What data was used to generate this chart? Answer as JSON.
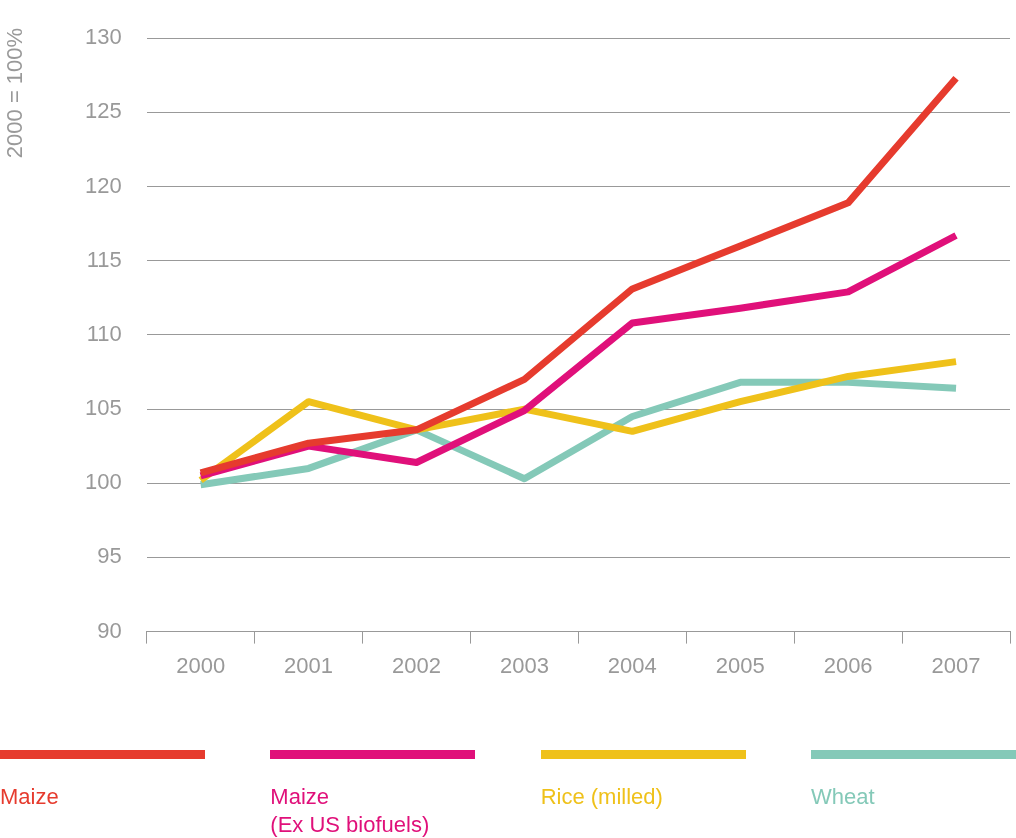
{
  "chart_data": {
    "type": "line",
    "ylabel": "2000 = 100%",
    "categories": [
      "2000",
      "2001",
      "2002",
      "2003",
      "2004",
      "2005",
      "2006",
      "2007"
    ],
    "series": [
      {
        "name": "Maize",
        "color": "#e63b2e",
        "values": [
          100.7,
          102.7,
          103.6,
          107.0,
          113.1,
          116.0,
          118.9,
          127.3
        ]
      },
      {
        "name": "Maize\n(Ex US biofuels)",
        "color": "#e0107a",
        "values": [
          100.5,
          102.5,
          101.4,
          104.9,
          110.8,
          111.8,
          112.9,
          116.7
        ]
      },
      {
        "name": "Rice (milled)",
        "color": "#efc11a",
        "values": [
          100.2,
          105.5,
          103.6,
          105.0,
          103.5,
          105.5,
          107.2,
          108.2
        ]
      },
      {
        "name": "Wheat",
        "color": "#84c9b8",
        "values": [
          99.9,
          101.0,
          103.6,
          100.3,
          104.5,
          106.8,
          106.8,
          106.4
        ]
      }
    ],
    "ylim": [
      90,
      130
    ],
    "yticks": [
      90,
      95,
      100,
      105,
      110,
      115,
      120,
      125,
      130
    ],
    "grid": "y",
    "legend": "bottom",
    "marker": "none",
    "line_style": "solid"
  }
}
